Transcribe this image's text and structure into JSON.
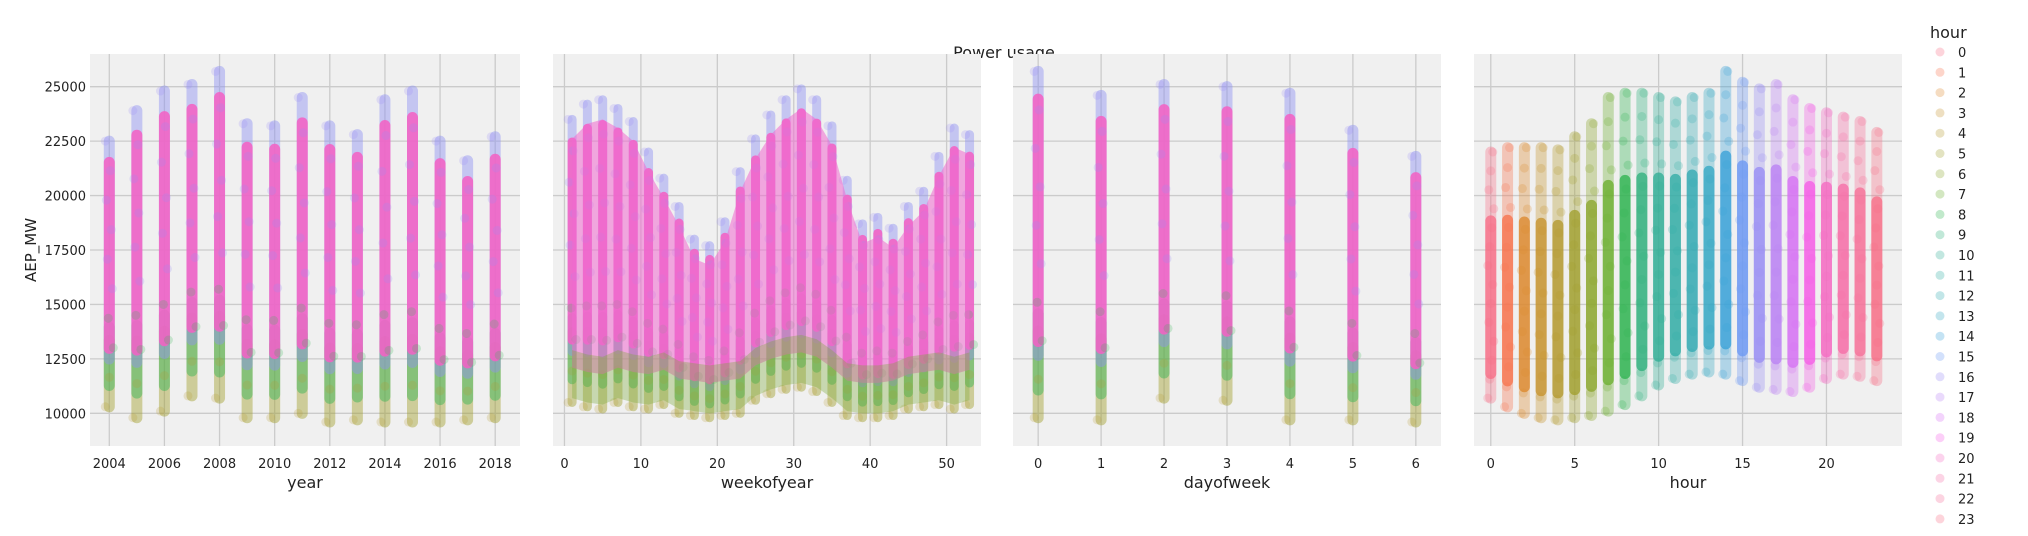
{
  "figure": {
    "title": "Power usage",
    "background": "#ffffff",
    "panel_background": "#f0f0f0",
    "grid_color": "#cbcbcb"
  },
  "legend": {
    "title": "hour",
    "placement": "right",
    "labels": [
      "0",
      "1",
      "2",
      "3",
      "4",
      "5",
      "6",
      "7",
      "8",
      "9",
      "10",
      "11",
      "12",
      "13",
      "14",
      "15",
      "16",
      "17",
      "18",
      "19",
      "20",
      "21",
      "22",
      "23"
    ],
    "colors": [
      "#f77189",
      "#f7754f",
      "#dd8a31",
      "#c79531",
      "#b59b31",
      "#a3a131",
      "#8ea831",
      "#6eb032",
      "#32b553",
      "#33b27f",
      "#34af97",
      "#35aea7",
      "#36abb4",
      "#38a9c5",
      "#3ba3d9",
      "#6e9af4",
      "#9a8ff4",
      "#bb83f4",
      "#d672f4",
      "#f560e7",
      "#f56cc3",
      "#f66fa8",
      "#f6729a",
      "#f77189"
    ]
  },
  "chart_data": [
    {
      "type": "scatter",
      "xlabel": "year",
      "ylabel": "AEP_MW",
      "xlim": [
        2003.3,
        2018.9
      ],
      "ylim": [
        8500,
        26500
      ],
      "xticks": [
        2004,
        2006,
        2008,
        2010,
        2012,
        2014,
        2016,
        2018
      ],
      "yticks": [
        10000,
        12500,
        15000,
        17500,
        20000,
        22500,
        25000
      ],
      "grid": true,
      "x": [
        2004,
        2005,
        2006,
        2007,
        2008,
        2009,
        2010,
        2011,
        2012,
        2013,
        2014,
        2015,
        2016,
        2017,
        2018
      ],
      "y_min": [
        10300,
        9800,
        10100,
        10800,
        10700,
        9800,
        9800,
        10000,
        9600,
        9700,
        9600,
        9600,
        9600,
        9700,
        9800
      ],
      "y_max": [
        22500,
        23900,
        24800,
        25100,
        25700,
        23300,
        23200,
        24500,
        23200,
        22800,
        24400,
        24800,
        22500,
        21600,
        22700
      ]
    },
    {
      "type": "scatter",
      "xlabel": "weekofyear",
      "ylabel": "",
      "xlim": [
        -1.5,
        54.5
      ],
      "ylim": [
        8500,
        26500
      ],
      "xticks": [
        0,
        10,
        20,
        30,
        40,
        50
      ],
      "grid": true,
      "x": [
        1,
        3,
        5,
        7,
        9,
        11,
        13,
        15,
        17,
        19,
        21,
        23,
        25,
        27,
        29,
        31,
        33,
        35,
        37,
        39,
        41,
        43,
        45,
        47,
        49,
        51,
        53
      ],
      "y_min": [
        10500,
        10300,
        10200,
        10500,
        10300,
        10200,
        10400,
        10000,
        9900,
        9800,
        9900,
        10000,
        10600,
        10900,
        11100,
        11200,
        11000,
        10500,
        9900,
        9800,
        9800,
        9900,
        10200,
        10300,
        10400,
        10200,
        10400
      ],
      "y_max": [
        23500,
        24200,
        24400,
        24000,
        23400,
        22000,
        20800,
        19500,
        18000,
        17700,
        18800,
        21100,
        22600,
        23700,
        24400,
        24900,
        24400,
        23200,
        20700,
        18700,
        19000,
        18500,
        19500,
        20200,
        21800,
        23100,
        22800
      ]
    },
    {
      "type": "scatter",
      "xlabel": "dayofweek",
      "ylabel": "",
      "xlim": [
        -0.4,
        6.4
      ],
      "ylim": [
        8500,
        26500
      ],
      "xticks": [
        0,
        1,
        2,
        3,
        4,
        5,
        6
      ],
      "grid": true,
      "x": [
        0,
        1,
        2,
        3,
        4,
        5,
        6
      ],
      "y_min": [
        9800,
        9700,
        10700,
        10600,
        9700,
        9700,
        9600
      ],
      "y_max": [
        25700,
        24600,
        25100,
        25000,
        24700,
        23000,
        21800
      ]
    },
    {
      "type": "scatter",
      "xlabel": "hour",
      "ylabel": "",
      "xlim": [
        -1,
        24.5
      ],
      "ylim": [
        8500,
        26500
      ],
      "xticks": [
        0,
        5,
        10,
        15,
        20
      ],
      "grid": true,
      "x": [
        0,
        1,
        2,
        3,
        4,
        5,
        6,
        7,
        8,
        9,
        10,
        11,
        12,
        13,
        14,
        15,
        16,
        17,
        18,
        19,
        20,
        21,
        22,
        23
      ],
      "y_min": [
        10700,
        10300,
        10000,
        9800,
        9700,
        9800,
        9900,
        10100,
        10400,
        10800,
        11300,
        11600,
        11800,
        11900,
        11800,
        11500,
        11200,
        11100,
        11000,
        11200,
        11600,
        11800,
        11700,
        11500
      ],
      "y_max": [
        22000,
        22200,
        22200,
        22200,
        22100,
        22700,
        23300,
        24500,
        24700,
        24700,
        24500,
        24300,
        24500,
        24700,
        25700,
        25200,
        24900,
        25100,
        24400,
        24000,
        23800,
        23600,
        23400,
        22900
      ]
    }
  ]
}
